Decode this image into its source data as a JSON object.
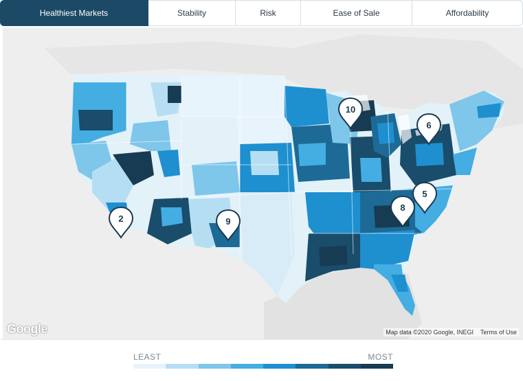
{
  "tabs": [
    {
      "label": "Healthiest Markets",
      "active": true
    },
    {
      "label": "Stability",
      "active": false
    },
    {
      "label": "Risk",
      "active": false
    },
    {
      "label": "Ease of Sale",
      "active": false
    },
    {
      "label": "Affordability",
      "active": false
    }
  ],
  "map": {
    "markers": [
      {
        "label": "2",
        "location": "Southern California"
      },
      {
        "label": "9",
        "location": "New Mexico"
      },
      {
        "label": "10",
        "location": "Wisconsin"
      },
      {
        "label": "6",
        "location": "New York"
      },
      {
        "label": "5",
        "location": "North Carolina"
      },
      {
        "label": "8",
        "location": "Tennessee"
      }
    ],
    "logo": "Google",
    "attribution": "Map data ©2020 Google, INEGI",
    "terms": "Terms of Use"
  },
  "legend": {
    "least_label": "LEAST",
    "most_label": "MOST",
    "colors": [
      "#e8f4fb",
      "#b6def3",
      "#7ec6ea",
      "#44ade2",
      "#1e8fcf",
      "#1d6a97",
      "#1a4c6b",
      "#173b52"
    ]
  }
}
